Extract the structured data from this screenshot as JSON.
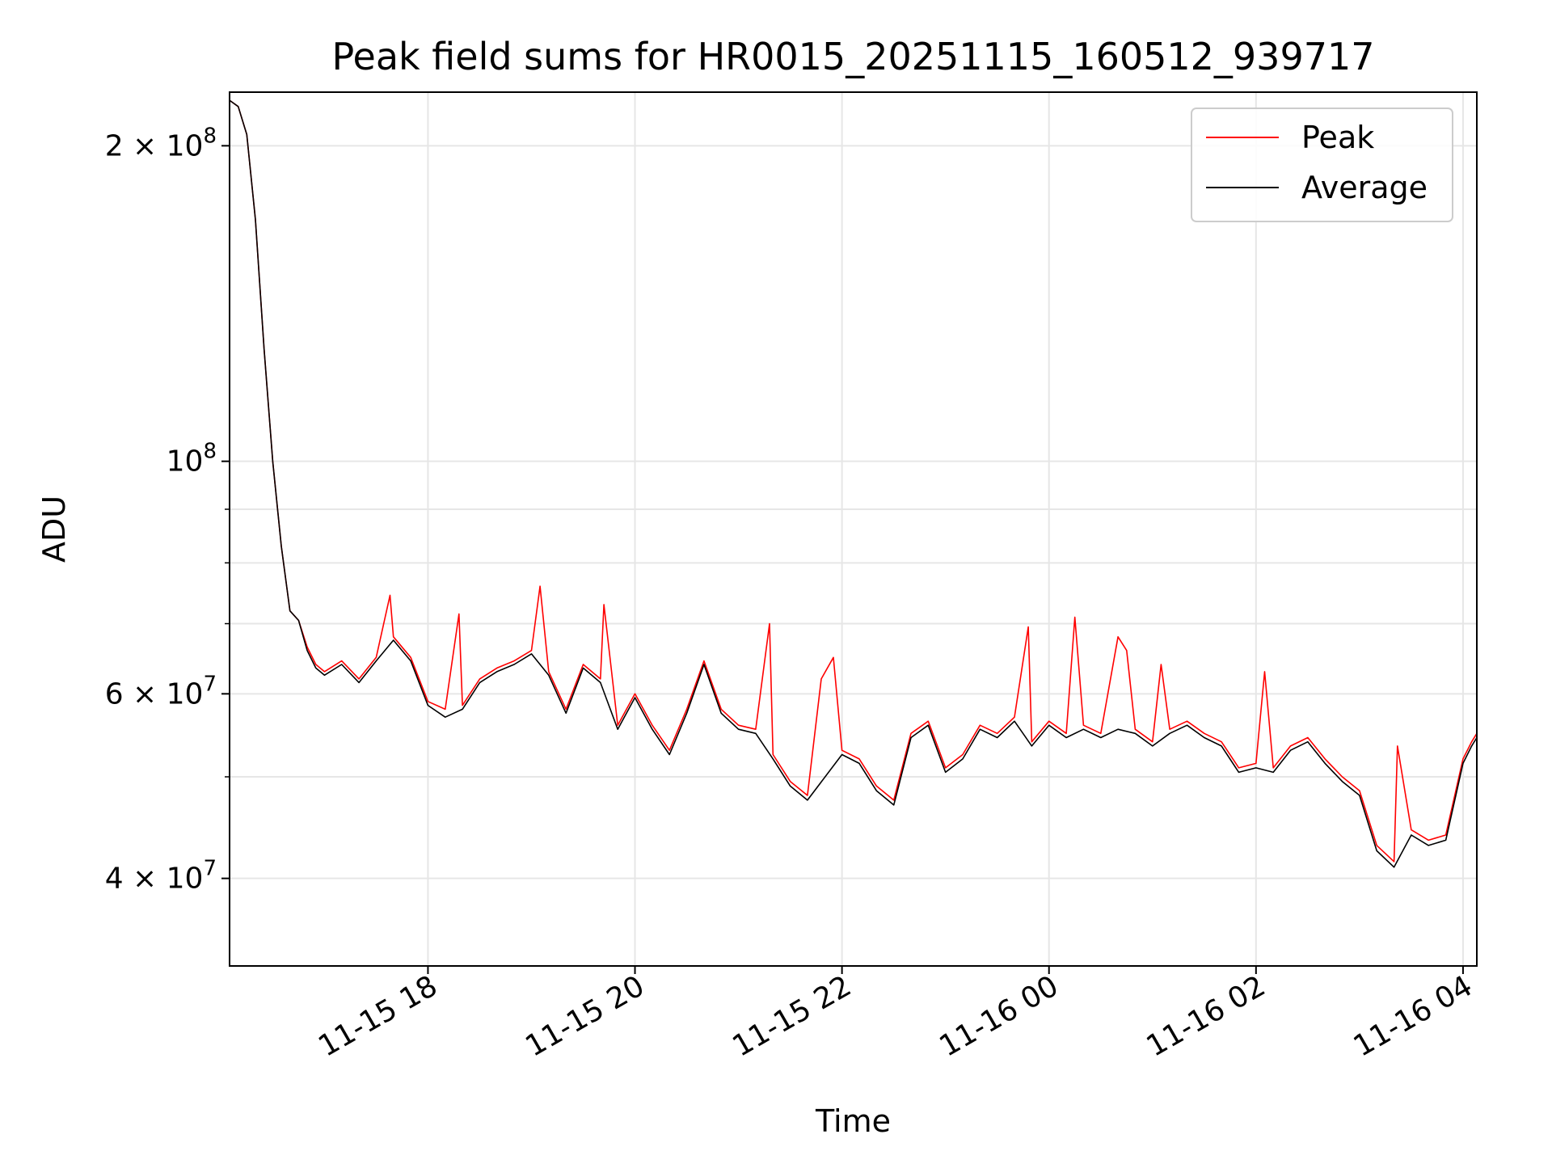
{
  "chart_data": {
    "type": "line",
    "title": "Peak field sums for HR0015_20251115_160512_939717",
    "xlabel": "Time",
    "ylabel": "ADU",
    "x_range": [
      "2025-11-15 16:05",
      "2025-11-16 04:08"
    ],
    "xticks": [
      {
        "value": "2025-11-15 18:00",
        "label": "11-15 18"
      },
      {
        "value": "2025-11-15 20:00",
        "label": "11-15 20"
      },
      {
        "value": "2025-11-15 22:00",
        "label": "11-15 22"
      },
      {
        "value": "2025-11-16 00:00",
        "label": "11-16 00"
      },
      {
        "value": "2025-11-16 02:00",
        "label": "11-16 02"
      },
      {
        "value": "2025-11-16 04:00",
        "label": "11-16 04"
      }
    ],
    "yscale": "log",
    "ylim": [
      33000000,
      225000000
    ],
    "yticks": [
      {
        "value": 40000000,
        "base": "4 × 10",
        "exp": "7"
      },
      {
        "value": 60000000,
        "base": "6 × 10",
        "exp": "7"
      },
      {
        "value": 100000000,
        "base": "10",
        "exp": "8"
      },
      {
        "value": 200000000,
        "base": "2 × 10",
        "exp": "8"
      }
    ],
    "yminor": [
      50000000,
      70000000,
      80000000,
      90000000
    ],
    "grid": true,
    "legend": "top-right",
    "series": [
      {
        "name": "Peak",
        "color": "#ff0000",
        "points": [
          [
            "2025-11-15 16:05",
            221000000
          ],
          [
            "2025-11-15 16:10",
            218000000
          ],
          [
            "2025-11-15 16:15",
            205000000
          ],
          [
            "2025-11-15 16:20",
            170000000
          ],
          [
            "2025-11-15 16:25",
            128000000
          ],
          [
            "2025-11-15 16:30",
            100000000
          ],
          [
            "2025-11-15 16:35",
            83000000
          ],
          [
            "2025-11-15 16:40",
            72000000
          ],
          [
            "2025-11-15 16:45",
            70500000
          ],
          [
            "2025-11-15 16:50",
            66500000
          ],
          [
            "2025-11-15 16:55",
            64000000
          ],
          [
            "2025-11-15 17:00",
            63000000
          ],
          [
            "2025-11-15 17:10",
            64500000
          ],
          [
            "2025-11-15 17:20",
            62000000
          ],
          [
            "2025-11-15 17:30",
            65000000
          ],
          [
            "2025-11-15 17:38",
            74500000
          ],
          [
            "2025-11-15 17:40",
            68000000
          ],
          [
            "2025-11-15 17:50",
            65000000
          ],
          [
            "2025-11-15 18:00",
            59000000
          ],
          [
            "2025-11-15 18:10",
            58000000
          ],
          [
            "2025-11-15 18:18",
            71500000
          ],
          [
            "2025-11-15 18:20",
            58500000
          ],
          [
            "2025-11-15 18:30",
            62000000
          ],
          [
            "2025-11-15 18:40",
            63500000
          ],
          [
            "2025-11-15 18:50",
            64500000
          ],
          [
            "2025-11-15 19:00",
            66000000
          ],
          [
            "2025-11-15 19:05",
            76000000
          ],
          [
            "2025-11-15 19:10",
            63000000
          ],
          [
            "2025-11-15 19:20",
            58000000
          ],
          [
            "2025-11-15 19:30",
            64000000
          ],
          [
            "2025-11-15 19:40",
            62000000
          ],
          [
            "2025-11-15 19:42",
            73000000
          ],
          [
            "2025-11-15 19:50",
            56000000
          ],
          [
            "2025-11-15 20:00",
            60000000
          ],
          [
            "2025-11-15 20:10",
            56000000
          ],
          [
            "2025-11-15 20:20",
            53000000
          ],
          [
            "2025-11-15 20:30",
            58000000
          ],
          [
            "2025-11-15 20:40",
            64500000
          ],
          [
            "2025-11-15 20:50",
            58000000
          ],
          [
            "2025-11-15 21:00",
            56000000
          ],
          [
            "2025-11-15 21:10",
            55500000
          ],
          [
            "2025-11-15 21:18",
            70000000
          ],
          [
            "2025-11-15 21:20",
            52500000
          ],
          [
            "2025-11-15 21:30",
            49500000
          ],
          [
            "2025-11-15 21:40",
            48000000
          ],
          [
            "2025-11-15 21:48",
            62000000
          ],
          [
            "2025-11-15 21:55",
            65000000
          ],
          [
            "2025-11-15 22:00",
            53000000
          ],
          [
            "2025-11-15 22:10",
            52000000
          ],
          [
            "2025-11-15 22:20",
            49000000
          ],
          [
            "2025-11-15 22:30",
            47500000
          ],
          [
            "2025-11-15 22:40",
            55000000
          ],
          [
            "2025-11-15 22:50",
            56500000
          ],
          [
            "2025-11-15 23:00",
            51000000
          ],
          [
            "2025-11-15 23:10",
            52500000
          ],
          [
            "2025-11-15 23:20",
            56000000
          ],
          [
            "2025-11-15 23:30",
            55000000
          ],
          [
            "2025-11-15 23:40",
            57000000
          ],
          [
            "2025-11-15 23:48",
            69500000
          ],
          [
            "2025-11-15 23:50",
            54000000
          ],
          [
            "2025-11-16 00:00",
            56500000
          ],
          [
            "2025-11-16 00:10",
            55000000
          ],
          [
            "2025-11-16 00:15",
            71000000
          ],
          [
            "2025-11-16 00:20",
            56000000
          ],
          [
            "2025-11-16 00:30",
            55000000
          ],
          [
            "2025-11-16 00:40",
            68000000
          ],
          [
            "2025-11-16 00:45",
            66000000
          ],
          [
            "2025-11-16 00:50",
            55500000
          ],
          [
            "2025-11-16 01:00",
            54000000
          ],
          [
            "2025-11-16 01:05",
            64000000
          ],
          [
            "2025-11-16 01:10",
            55500000
          ],
          [
            "2025-11-16 01:20",
            56500000
          ],
          [
            "2025-11-16 01:30",
            55000000
          ],
          [
            "2025-11-16 01:40",
            54000000
          ],
          [
            "2025-11-16 01:50",
            51000000
          ],
          [
            "2025-11-16 02:00",
            51500000
          ],
          [
            "2025-11-16 02:05",
            63000000
          ],
          [
            "2025-11-16 02:10",
            51000000
          ],
          [
            "2025-11-16 02:20",
            53500000
          ],
          [
            "2025-11-16 02:30",
            54500000
          ],
          [
            "2025-11-16 02:40",
            52000000
          ],
          [
            "2025-11-16 02:50",
            50000000
          ],
          [
            "2025-11-16 03:00",
            48500000
          ],
          [
            "2025-11-16 03:10",
            43000000
          ],
          [
            "2025-11-16 03:20",
            41500000
          ],
          [
            "2025-11-16 03:22",
            53500000
          ],
          [
            "2025-11-16 03:30",
            44500000
          ],
          [
            "2025-11-16 03:40",
            43500000
          ],
          [
            "2025-11-16 03:50",
            44000000
          ],
          [
            "2025-11-16 04:00",
            52000000
          ],
          [
            "2025-11-16 04:05",
            54000000
          ],
          [
            "2025-11-16 04:08",
            55000000
          ]
        ]
      },
      {
        "name": "Average",
        "color": "#000000",
        "points": [
          [
            "2025-11-15 16:05",
            221000000
          ],
          [
            "2025-11-15 16:10",
            218000000
          ],
          [
            "2025-11-15 16:15",
            205000000
          ],
          [
            "2025-11-15 16:20",
            170000000
          ],
          [
            "2025-11-15 16:25",
            128000000
          ],
          [
            "2025-11-15 16:30",
            100000000
          ],
          [
            "2025-11-15 16:35",
            83000000
          ],
          [
            "2025-11-15 16:40",
            72000000
          ],
          [
            "2025-11-15 16:45",
            70500000
          ],
          [
            "2025-11-15 16:50",
            66000000
          ],
          [
            "2025-11-15 16:55",
            63500000
          ],
          [
            "2025-11-15 17:00",
            62500000
          ],
          [
            "2025-11-15 17:10",
            64000000
          ],
          [
            "2025-11-15 17:20",
            61500000
          ],
          [
            "2025-11-15 17:30",
            64500000
          ],
          [
            "2025-11-15 17:40",
            67500000
          ],
          [
            "2025-11-15 17:50",
            64500000
          ],
          [
            "2025-11-15 18:00",
            58500000
          ],
          [
            "2025-11-15 18:10",
            57000000
          ],
          [
            "2025-11-15 18:20",
            58000000
          ],
          [
            "2025-11-15 18:30",
            61500000
          ],
          [
            "2025-11-15 18:40",
            63000000
          ],
          [
            "2025-11-15 18:50",
            64000000
          ],
          [
            "2025-11-15 19:00",
            65500000
          ],
          [
            "2025-11-15 19:10",
            62500000
          ],
          [
            "2025-11-15 19:20",
            57500000
          ],
          [
            "2025-11-15 19:30",
            63500000
          ],
          [
            "2025-11-15 19:40",
            61500000
          ],
          [
            "2025-11-15 19:50",
            55500000
          ],
          [
            "2025-11-15 20:00",
            59500000
          ],
          [
            "2025-11-15 20:10",
            55500000
          ],
          [
            "2025-11-15 20:20",
            52500000
          ],
          [
            "2025-11-15 20:30",
            57500000
          ],
          [
            "2025-11-15 20:40",
            64000000
          ],
          [
            "2025-11-15 20:50",
            57500000
          ],
          [
            "2025-11-15 21:00",
            55500000
          ],
          [
            "2025-11-15 21:10",
            55000000
          ],
          [
            "2025-11-15 21:20",
            52000000
          ],
          [
            "2025-11-15 21:30",
            49000000
          ],
          [
            "2025-11-15 21:40",
            47500000
          ],
          [
            "2025-11-15 22:00",
            52500000
          ],
          [
            "2025-11-15 22:10",
            51500000
          ],
          [
            "2025-11-15 22:20",
            48500000
          ],
          [
            "2025-11-15 22:30",
            47000000
          ],
          [
            "2025-11-15 22:40",
            54500000
          ],
          [
            "2025-11-15 22:50",
            56000000
          ],
          [
            "2025-11-15 23:00",
            50500000
          ],
          [
            "2025-11-15 23:10",
            52000000
          ],
          [
            "2025-11-15 23:20",
            55500000
          ],
          [
            "2025-11-15 23:30",
            54500000
          ],
          [
            "2025-11-15 23:40",
            56500000
          ],
          [
            "2025-11-15 23:50",
            53500000
          ],
          [
            "2025-11-16 00:00",
            56000000
          ],
          [
            "2025-11-16 00:10",
            54500000
          ],
          [
            "2025-11-16 00:20",
            55500000
          ],
          [
            "2025-11-16 00:30",
            54500000
          ],
          [
            "2025-11-16 00:40",
            55500000
          ],
          [
            "2025-11-16 00:50",
            55000000
          ],
          [
            "2025-11-16 01:00",
            53500000
          ],
          [
            "2025-11-16 01:10",
            55000000
          ],
          [
            "2025-11-16 01:20",
            56000000
          ],
          [
            "2025-11-16 01:30",
            54500000
          ],
          [
            "2025-11-16 01:40",
            53500000
          ],
          [
            "2025-11-16 01:50",
            50500000
          ],
          [
            "2025-11-16 02:00",
            51000000
          ],
          [
            "2025-11-16 02:10",
            50500000
          ],
          [
            "2025-11-16 02:20",
            53000000
          ],
          [
            "2025-11-16 02:30",
            54000000
          ],
          [
            "2025-11-16 02:40",
            51500000
          ],
          [
            "2025-11-16 02:50",
            49500000
          ],
          [
            "2025-11-16 03:00",
            48000000
          ],
          [
            "2025-11-16 03:10",
            42500000
          ],
          [
            "2025-11-16 03:20",
            41000000
          ],
          [
            "2025-11-16 03:30",
            44000000
          ],
          [
            "2025-11-16 03:40",
            43000000
          ],
          [
            "2025-11-16 03:50",
            43500000
          ],
          [
            "2025-11-16 04:00",
            51500000
          ],
          [
            "2025-11-16 04:05",
            53500000
          ],
          [
            "2025-11-16 04:08",
            54500000
          ]
        ]
      }
    ]
  }
}
